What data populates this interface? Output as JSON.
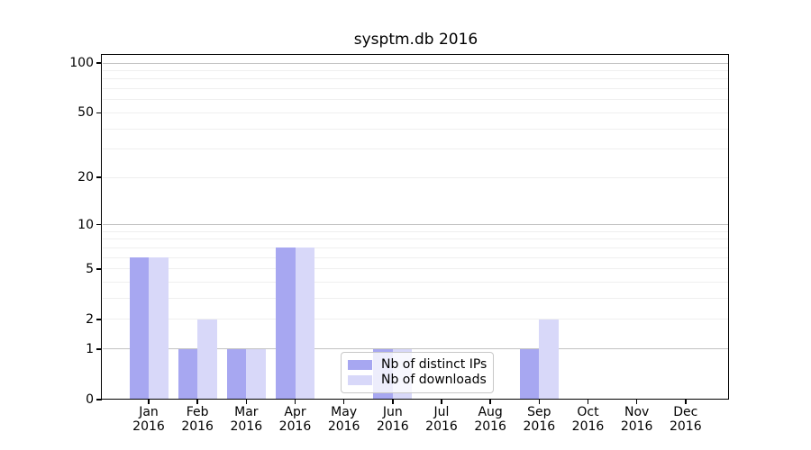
{
  "title": "sysptm.db 2016",
  "chart_data": {
    "type": "bar",
    "title": "sysptm.db 2016",
    "categories": [
      "Jan 2016",
      "Feb 2016",
      "Mar 2016",
      "Apr 2016",
      "May 2016",
      "Jun 2016",
      "Jul 2016",
      "Aug 2016",
      "Sep 2016",
      "Oct 2016",
      "Nov 2016",
      "Dec 2016"
    ],
    "series": [
      {
        "name": "Nb of distinct IPs",
        "color": "#a7a7f1",
        "values": [
          6,
          1,
          1,
          7,
          0,
          1,
          0,
          0,
          1,
          0,
          0,
          0
        ]
      },
      {
        "name": "Nb of downloads",
        "color": "#d8d8f9",
        "values": [
          6,
          2,
          1,
          7,
          0,
          1,
          0,
          0,
          2,
          0,
          0,
          0
        ]
      }
    ],
    "y_axis": {
      "scale": "log1p",
      "ticks": [
        0,
        1,
        2,
        5,
        10,
        20,
        50,
        100
      ],
      "range": [
        0,
        112
      ]
    },
    "x_axis": {
      "tick_label_lines": 2
    },
    "grid": {
      "major_values": [
        1,
        10,
        100
      ],
      "minor_values": [
        2,
        3,
        4,
        5,
        6,
        7,
        8,
        9,
        20,
        30,
        40,
        50,
        60,
        70,
        80,
        90
      ],
      "major_color": "#c2c2c2",
      "minor_color": "#efefef"
    },
    "legend": {
      "position": "inside-bottom-center",
      "entries": [
        "Nb of distinct IPs",
        "Nb of downloads"
      ]
    },
    "colors": {
      "axis": "#000000",
      "background": "#ffffff",
      "text": "#000000"
    }
  }
}
